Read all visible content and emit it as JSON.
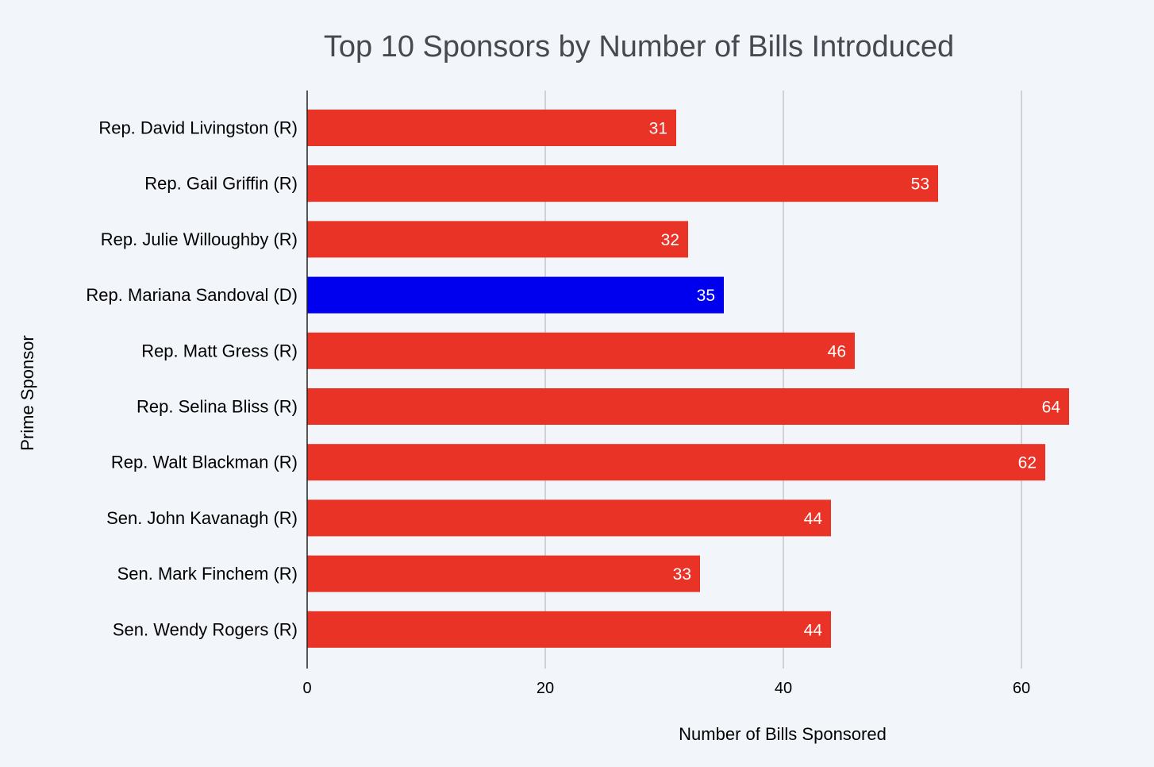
{
  "chart_data": {
    "type": "bar",
    "orientation": "horizontal",
    "title": "Top 10 Sponsors by Number of Bills Introduced",
    "xlabel": "Number of Bills Sponsored",
    "ylabel": "Prime Sponsor",
    "xlim": [
      0,
      70
    ],
    "xticks": [
      0,
      20,
      40,
      60
    ],
    "xtick_labels": [
      "0",
      "20",
      "40",
      "60"
    ],
    "grid": true,
    "categories": [
      "Rep. David Livingston (R)",
      "Rep. Gail Griffin (R)",
      "Rep. Julie Willoughby (R)",
      "Rep. Mariana Sandoval (D)",
      "Rep. Matt Gress (R)",
      "Rep. Selina Bliss (R)",
      "Rep. Walt Blackman (R)",
      "Sen. John Kavanagh (R)",
      "Sen. Mark Finchem (R)",
      "Sen. Wendy Rogers (R)"
    ],
    "values": [
      31,
      53,
      32,
      35,
      46,
      64,
      62,
      44,
      33,
      44
    ],
    "value_labels": [
      "31",
      "53",
      "32",
      "35",
      "46",
      "64",
      "62",
      "44",
      "33",
      "44"
    ],
    "party": [
      "R",
      "R",
      "R",
      "D",
      "R",
      "R",
      "R",
      "R",
      "R",
      "R"
    ],
    "colors": {
      "R": "#e83326",
      "D": "#0000ee"
    }
  }
}
